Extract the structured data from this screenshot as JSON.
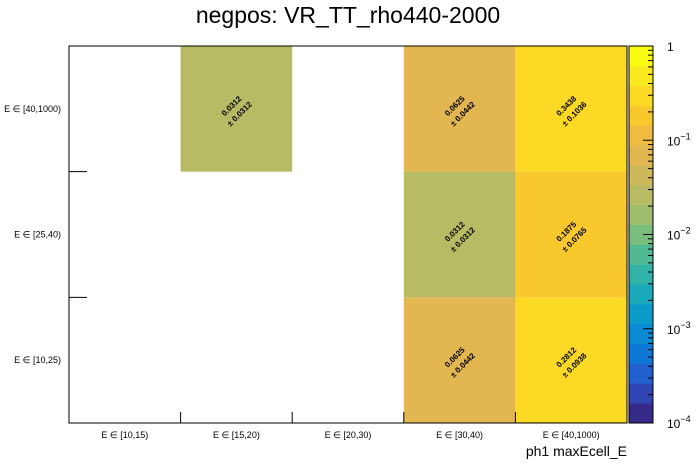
{
  "chart_data": {
    "type": "heatmap",
    "title": "negpos: VR_TT_rho440-2000",
    "xlabel": "ph1 maxEcell_E",
    "ylabel": "",
    "x_categories": [
      "E ∈ [10,15)",
      "E ∈ [15,20)",
      "E ∈ [20,30)",
      "E ∈ [30,40)",
      "E ∈ [40,1000)"
    ],
    "y_categories": [
      "E ∈ [10,25)",
      "E ∈ [25,40)",
      "E ∈ [40,1000)"
    ],
    "cells": [
      {
        "x": 1,
        "y": 2,
        "value": 0.0312,
        "error": 0.0312,
        "value_label": "0.0312",
        "error_label": "± 0.0312"
      },
      {
        "x": 3,
        "y": 2,
        "value": 0.0625,
        "error": 0.0442,
        "value_label": "0.0625",
        "error_label": "± 0.0442"
      },
      {
        "x": 4,
        "y": 2,
        "value": 0.3438,
        "error": 0.1036,
        "value_label": "0.3438",
        "error_label": "± 0.1036"
      },
      {
        "x": 3,
        "y": 1,
        "value": 0.0312,
        "error": 0.0312,
        "value_label": "0.0312",
        "error_label": "± 0.0312"
      },
      {
        "x": 4,
        "y": 1,
        "value": 0.1875,
        "error": 0.0765,
        "value_label": "0.1875",
        "error_label": "± 0.0765"
      },
      {
        "x": 3,
        "y": 0,
        "value": 0.0625,
        "error": 0.0442,
        "value_label": "0.0625",
        "error_label": "± 0.0442"
      },
      {
        "x": 4,
        "y": 0,
        "value": 0.2812,
        "error": 0.0938,
        "value_label": "0.2812",
        "error_label": "± 0.0938"
      }
    ],
    "z_scale": "log",
    "z_range": [
      0.0001,
      1
    ],
    "z_ticks": [
      {
        "value": 1,
        "label": "1",
        "exp": ""
      },
      {
        "value": 0.1,
        "label": "10",
        "exp": "−1"
      },
      {
        "value": 0.01,
        "label": "10",
        "exp": "−2"
      },
      {
        "value": 0.001,
        "label": "10",
        "exp": "−3"
      },
      {
        "value": 0.0001,
        "label": "10",
        "exp": "−4"
      }
    ],
    "palette": [
      "#352a87",
      "#2f45b4",
      "#2060cf",
      "#0f77d8",
      "#0a8bd4",
      "#0b9cc9",
      "#19a9bb",
      "#32b3a7",
      "#52ba92",
      "#79be7c",
      "#9cbd6b",
      "#b7bb63",
      "#cdb85c",
      "#e2b651",
      "#f0bb3f",
      "#f8c82c",
      "#fcd925",
      "#f9ea20",
      "#f9fb0e"
    ]
  }
}
